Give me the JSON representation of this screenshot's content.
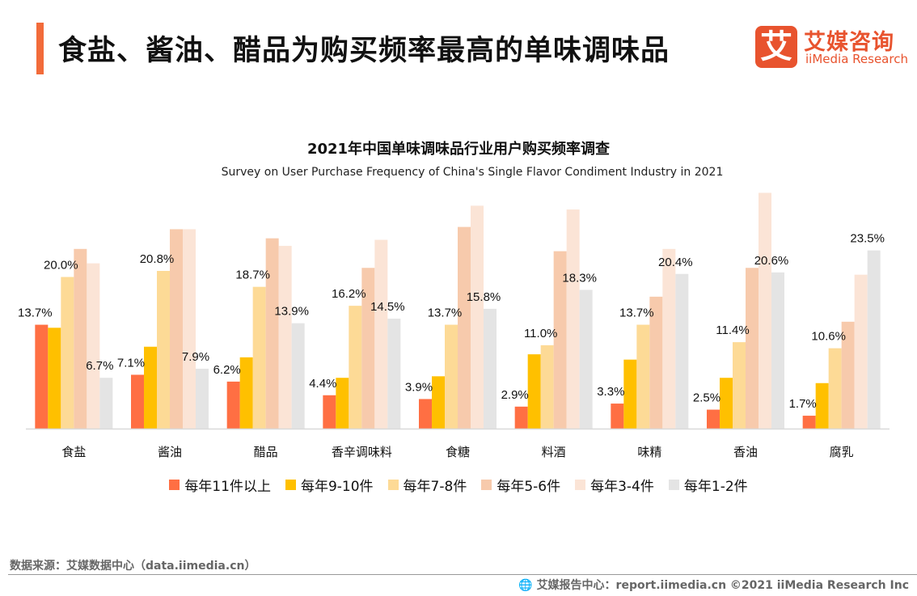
{
  "header": {
    "title": "食盐、酱油、醋品为购买频率最高的单味调味品"
  },
  "logo": {
    "mark": "艾",
    "cn": "艾媒咨询",
    "en": "iiMedia Research"
  },
  "chart_data": {
    "type": "bar",
    "title": "2021年中国单味调味品行业用户购买频率调查",
    "subtitle": "Survey on User Purchase Frequency of China's Single Flavor Condiment Industry in 2021",
    "categories": [
      "食盐",
      "酱油",
      "醋品",
      "香辛调味料",
      "食糖",
      "料酒",
      "味精",
      "香油",
      "腐乳"
    ],
    "ylim": [
      0,
      32
    ],
    "grid": false,
    "legend_position": "bottom",
    "series": [
      {
        "name": "每年11件以上",
        "color": "#FF6F43",
        "values": [
          13.7,
          7.1,
          6.2,
          4.4,
          3.9,
          2.9,
          3.3,
          2.5,
          1.7
        ],
        "labeled": true
      },
      {
        "name": "每年9-10件",
        "color": "#FFC000",
        "values": [
          13.3,
          10.8,
          9.4,
          6.7,
          6.9,
          9.8,
          9.1,
          6.7,
          6.0
        ],
        "labeled": false
      },
      {
        "name": "每年7-8件",
        "color": "#FDDA96",
        "values": [
          20.0,
          20.8,
          18.7,
          16.2,
          13.7,
          11.0,
          13.7,
          11.4,
          10.6
        ],
        "labeled": true
      },
      {
        "name": "每年5-6件",
        "color": "#F7CAAC",
        "values": [
          23.7,
          26.3,
          25.1,
          21.2,
          26.6,
          23.4,
          17.4,
          21.2,
          14.1
        ],
        "labeled": false
      },
      {
        "name": "每年3-4件",
        "color": "#FBE4D6",
        "values": [
          21.8,
          26.3,
          24.1,
          24.9,
          29.4,
          28.9,
          23.7,
          31.1,
          20.3
        ],
        "labeled": false
      },
      {
        "name": "每年1-2件",
        "color": "#E4E4E4",
        "values": [
          6.7,
          7.9,
          13.9,
          14.5,
          15.8,
          18.3,
          20.4,
          20.6,
          23.5
        ],
        "labeled": true
      }
    ]
  },
  "footer": {
    "source": "数据来源：艾媒数据中心（data.iimedia.cn）",
    "report": "艾媒报告中心：report.iimedia.cn  ©2021  iiMedia Research  Inc"
  }
}
